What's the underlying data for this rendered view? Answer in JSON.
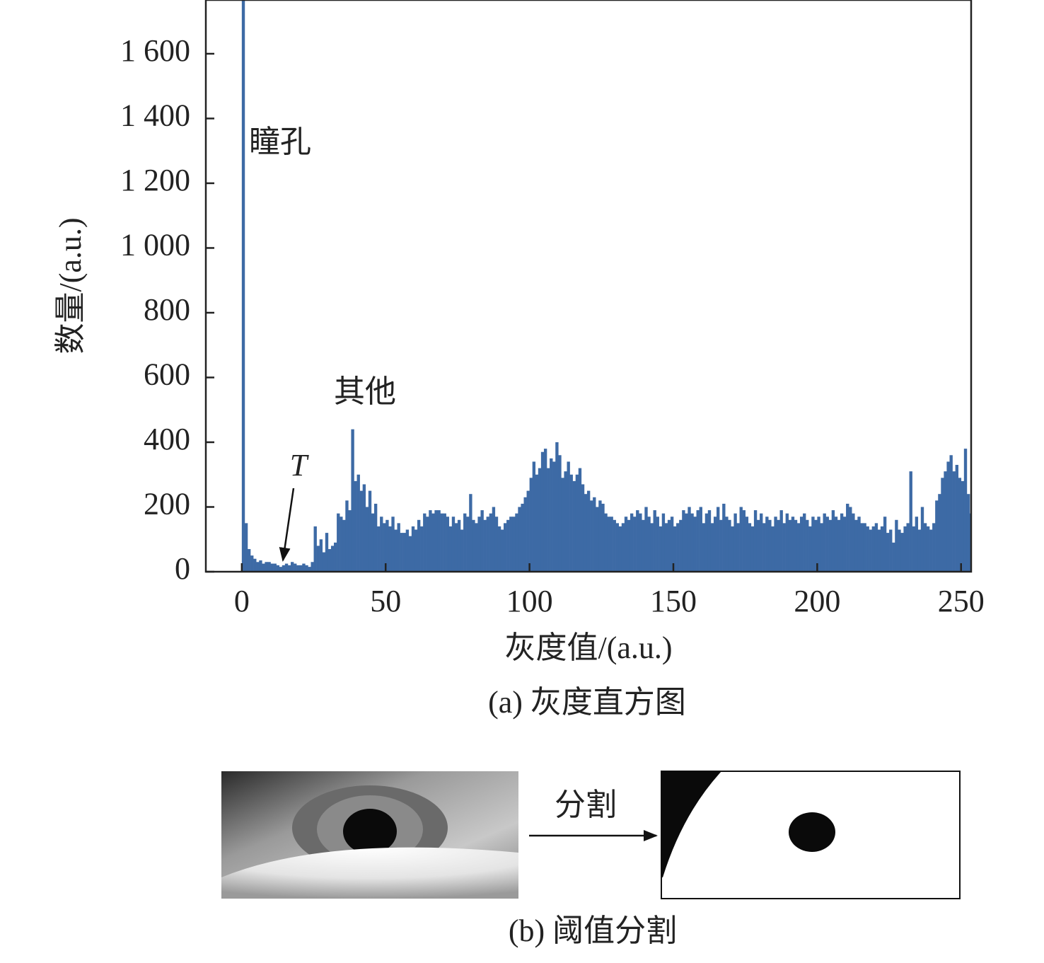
{
  "chart_data": {
    "type": "histogram",
    "caption": "(a) 灰度直方图",
    "xlabel": "灰度值/(a.u.)",
    "ylabel": "数量/(a.u.)",
    "annotations": [
      "瞳孔",
      "其他",
      "T"
    ],
    "color": "#3d6aa5",
    "xlim": [
      -12.5,
      253.5
    ],
    "ylim": [
      0,
      1766
    ],
    "xticks": [
      0,
      50,
      100,
      150,
      200,
      250
    ],
    "yticks": [
      0,
      200,
      400,
      600,
      800,
      {
        "value": 1000,
        "label": "1 000"
      },
      {
        "value": 1200,
        "label": "1 200"
      },
      {
        "value": 1400,
        "label": "1 400"
      },
      {
        "value": 1600,
        "label": "1 600"
      }
    ],
    "bins": [
      0,
      1,
      2,
      3,
      4,
      5,
      6,
      7,
      8,
      9,
      10,
      11,
      12,
      13,
      14,
      15,
      16,
      17,
      18,
      19,
      20,
      21,
      22,
      23,
      24,
      25,
      26,
      27,
      28,
      29,
      30,
      31,
      32,
      33,
      34,
      35,
      36,
      37,
      38,
      39,
      40,
      41,
      42,
      43,
      44,
      45,
      46,
      47,
      48,
      49,
      50,
      51,
      52,
      53,
      54,
      55,
      56,
      57,
      58,
      59,
      60,
      61,
      62,
      63,
      64,
      65,
      66,
      67,
      68,
      69,
      70,
      71,
      72,
      73,
      74,
      75,
      76,
      77,
      78,
      79,
      80,
      81,
      82,
      83,
      84,
      85,
      86,
      87,
      88,
      89,
      90,
      91,
      92,
      93,
      94,
      95,
      96,
      97,
      98,
      99,
      100,
      101,
      102,
      103,
      104,
      105,
      106,
      107,
      108,
      109,
      110,
      111,
      112,
      113,
      114,
      115,
      116,
      117,
      118,
      119,
      120,
      121,
      122,
      123,
      124,
      125,
      126,
      127,
      128,
      129,
      130,
      131,
      132,
      133,
      134,
      135,
      136,
      137,
      138,
      139,
      140,
      141,
      142,
      143,
      144,
      145,
      146,
      147,
      148,
      149,
      150,
      151,
      152,
      153,
      154,
      155,
      156,
      157,
      158,
      159,
      160,
      161,
      162,
      163,
      164,
      165,
      166,
      167,
      168,
      169,
      170,
      171,
      172,
      173,
      174,
      175,
      176,
      177,
      178,
      179,
      180,
      181,
      182,
      183,
      184,
      185,
      186,
      187,
      188,
      189,
      190,
      191,
      192,
      193,
      194,
      195,
      196,
      197,
      198,
      199,
      200,
      201,
      202,
      203,
      204,
      205,
      206,
      207,
      208,
      209,
      210,
      211,
      212,
      213,
      214,
      215,
      216,
      217,
      218,
      219,
      220,
      221,
      222,
      223,
      224,
      225,
      226,
      227,
      228,
      229,
      230,
      231,
      232,
      233,
      234,
      235,
      236,
      237,
      238,
      239,
      240,
      241,
      242,
      243,
      244,
      245,
      246,
      247,
      248,
      249,
      250,
      251,
      252,
      253,
      254
    ],
    "counts": [
      1766,
      150,
      70,
      50,
      40,
      30,
      35,
      25,
      30,
      30,
      25,
      25,
      20,
      15,
      20,
      25,
      20,
      30,
      25,
      20,
      20,
      25,
      20,
      15,
      30,
      140,
      80,
      100,
      60,
      120,
      70,
      80,
      90,
      180,
      170,
      160,
      220,
      190,
      440,
      280,
      300,
      250,
      270,
      200,
      250,
      180,
      210,
      140,
      170,
      150,
      160,
      140,
      170,
      130,
      150,
      120,
      120,
      130,
      110,
      140,
      130,
      160,
      140,
      180,
      170,
      190,
      180,
      190,
      190,
      180,
      180,
      170,
      140,
      170,
      150,
      160,
      130,
      180,
      170,
      240,
      160,
      150,
      170,
      190,
      160,
      170,
      180,
      200,
      170,
      140,
      130,
      150,
      160,
      170,
      170,
      180,
      200,
      210,
      230,
      250,
      290,
      340,
      300,
      320,
      370,
      380,
      320,
      350,
      340,
      400,
      360,
      290,
      310,
      340,
      300,
      280,
      300,
      320,
      270,
      240,
      250,
      220,
      230,
      200,
      220,
      210,
      180,
      170,
      170,
      160,
      150,
      140,
      150,
      170,
      160,
      180,
      170,
      190,
      180,
      160,
      200,
      170,
      150,
      190,
      170,
      140,
      180,
      150,
      160,
      170,
      140,
      150,
      160,
      190,
      180,
      200,
      180,
      170,
      190,
      200,
      150,
      180,
      190,
      150,
      170,
      200,
      160,
      210,
      170,
      160,
      140,
      180,
      150,
      200,
      190,
      170,
      150,
      140,
      190,
      160,
      180,
      150,
      170,
      160,
      140,
      170,
      160,
      190,
      150,
      180,
      160,
      170,
      160,
      150,
      170,
      180,
      160,
      140,
      170,
      160,
      170,
      150,
      180,
      170,
      160,
      190,
      170,
      160,
      180,
      170,
      210,
      200,
      180,
      160,
      170,
      150,
      150,
      140,
      130,
      140,
      150,
      130,
      140,
      170,
      120,
      130,
      90,
      160,
      130,
      120,
      140,
      150,
      310,
      140,
      170,
      130,
      200,
      150,
      140,
      130,
      150,
      220,
      240,
      290,
      310,
      340,
      360,
      310,
      330,
      290,
      280,
      380,
      240,
      180
    ]
  },
  "figure_b": {
    "caption": "(b) 阈值分割",
    "arrow_label": "分割"
  }
}
